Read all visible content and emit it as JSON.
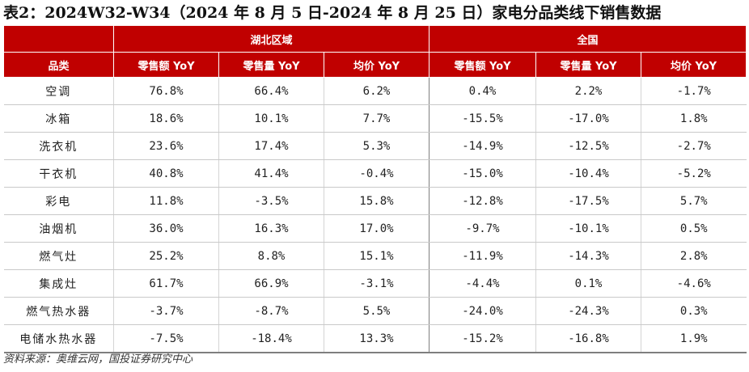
{
  "title": "表2：2024W32-W34（2024 年 8 月 5 日-2024 年 8 月 25 日）家电分品类线下销售数据",
  "group_headers": [
    "湖北区域",
    "全国"
  ],
  "columns": [
    "品类",
    "零售额 YoY",
    "零售量 YoY",
    "均价 YoY",
    "零售额 YoY",
    "零售量 YoY",
    "均价 YoY"
  ],
  "rows": [
    [
      "空调",
      "76.8%",
      "66.4%",
      "6.2%",
      "0.4%",
      "2.2%",
      "-1.7%"
    ],
    [
      "冰箱",
      "18.6%",
      "10.1%",
      "7.7%",
      "-15.5%",
      "-17.0%",
      "1.8%"
    ],
    [
      "洗衣机",
      "23.6%",
      "17.4%",
      "5.3%",
      "-14.9%",
      "-12.5%",
      "-2.7%"
    ],
    [
      "干衣机",
      "40.8%",
      "41.4%",
      "-0.4%",
      "-15.0%",
      "-10.4%",
      "-5.2%"
    ],
    [
      "彩电",
      "11.8%",
      "-3.5%",
      "15.8%",
      "-12.8%",
      "-17.5%",
      "5.7%"
    ],
    [
      "油烟机",
      "36.0%",
      "16.3%",
      "17.0%",
      "-9.7%",
      "-10.1%",
      "0.5%"
    ],
    [
      "燃气灶",
      "25.2%",
      "8.8%",
      "15.1%",
      "-11.9%",
      "-14.3%",
      "2.8%"
    ],
    [
      "集成灶",
      "61.7%",
      "66.9%",
      "-3.1%",
      "-4.4%",
      "0.1%",
      "-4.6%"
    ],
    [
      "燃气热水器",
      "-3.7%",
      "-8.7%",
      "5.5%",
      "-24.0%",
      "-24.3%",
      "0.3%"
    ],
    [
      "电储水热水器",
      "-7.5%",
      "-18.4%",
      "13.3%",
      "-15.2%",
      "-16.8%",
      "1.9%"
    ]
  ],
  "source": "资料来源：奥维云网，国投证券研究中心",
  "colors": {
    "header_bg": "#c00000",
    "header_text": "#ffffff"
  }
}
